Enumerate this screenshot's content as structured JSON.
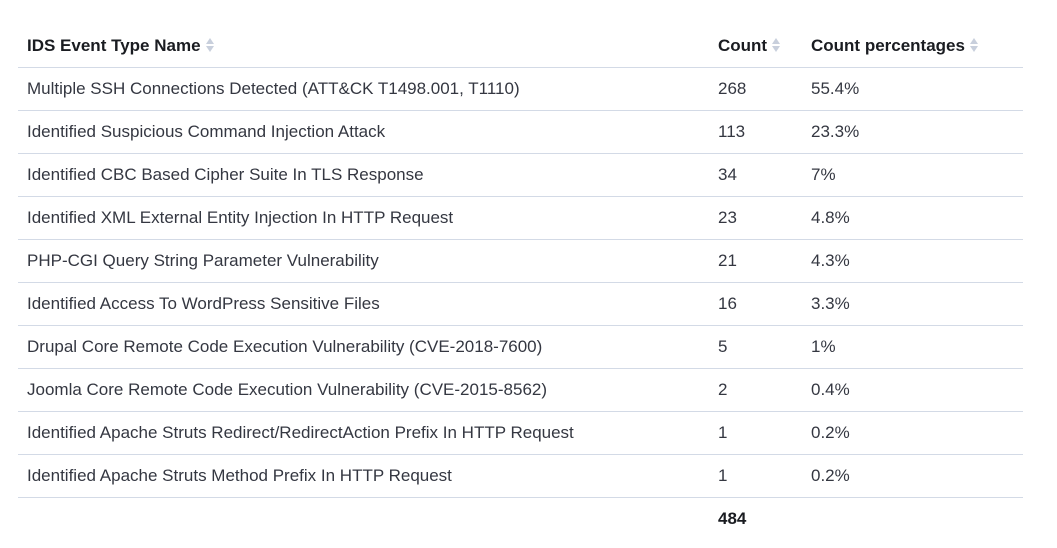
{
  "table": {
    "headers": [
      "IDS Event Type Name",
      "Count",
      "Count percentages"
    ],
    "rows": [
      [
        "Multiple SSH Connections Detected (ATT&CK T1498.001, T1110)",
        "268",
        "55.4%"
      ],
      [
        "Identified Suspicious Command Injection Attack",
        "113",
        "23.3%"
      ],
      [
        "Identified CBC Based Cipher Suite In TLS Response",
        "34",
        "7%"
      ],
      [
        "Identified XML External Entity Injection In HTTP Request",
        "23",
        "4.8%"
      ],
      [
        "PHP-CGI Query String Parameter Vulnerability",
        "21",
        "4.3%"
      ],
      [
        "Identified Access To WordPress Sensitive Files",
        "16",
        "3.3%"
      ],
      [
        "Drupal Core Remote Code Execution Vulnerability (CVE-2018-7600)",
        "5",
        "1%"
      ],
      [
        "Joomla Core Remote Code Execution Vulnerability (CVE-2015-8562)",
        "2",
        "0.4%"
      ],
      [
        "Identified Apache Struts Redirect/RedirectAction Prefix In HTTP Request",
        "1",
        "0.2%"
      ],
      [
        "Identified Apache Struts Method Prefix In HTTP Request",
        "1",
        "0.2%"
      ]
    ],
    "total": "484",
    "sort_icon": "sort-icon"
  }
}
